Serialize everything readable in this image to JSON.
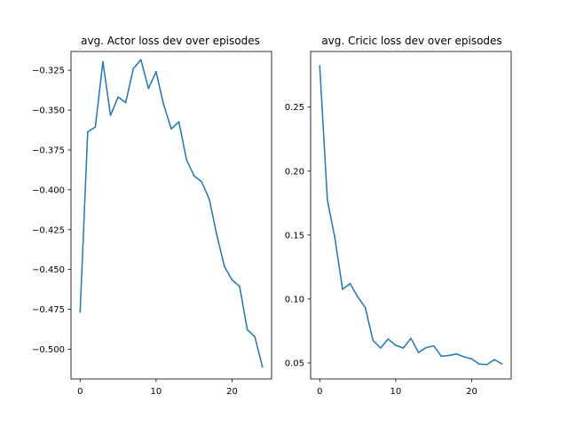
{
  "chart_data": [
    {
      "type": "line",
      "title": "avg. Actor loss dev over episodes",
      "xlabel": "",
      "ylabel": "",
      "xlim": [
        -1.2,
        25.2
      ],
      "ylim": [
        -0.5187,
        -0.3132
      ],
      "xticks": [
        0,
        10,
        20
      ],
      "xtick_labels": [
        "0",
        "10",
        "20"
      ],
      "yticks": [
        -0.5,
        -0.475,
        -0.45,
        -0.425,
        -0.4,
        -0.375,
        -0.35,
        -0.325
      ],
      "ytick_labels": [
        "−0.500",
        "−0.475",
        "−0.450",
        "−0.425",
        "−0.400",
        "−0.375",
        "−0.350",
        "−0.325"
      ],
      "grid": false,
      "series": [
        {
          "color": "#1f77b4",
          "x": [
            0,
            1,
            2,
            3,
            4,
            5,
            6,
            7,
            8,
            9,
            10,
            11,
            12,
            13,
            14,
            15,
            16,
            17,
            18,
            19,
            20,
            21,
            22,
            23,
            24
          ],
          "y": [
            -0.4768,
            -0.3637,
            -0.3606,
            -0.3196,
            -0.3533,
            -0.3418,
            -0.3453,
            -0.324,
            -0.3184,
            -0.3364,
            -0.3259,
            -0.3467,
            -0.3618,
            -0.3573,
            -0.3811,
            -0.3912,
            -0.395,
            -0.4059,
            -0.4285,
            -0.4482,
            -0.4565,
            -0.4607,
            -0.4877,
            -0.4923,
            -0.5113
          ]
        }
      ]
    },
    {
      "type": "line",
      "title": "avg. Cricic loss dev over episodes",
      "xlabel": "",
      "ylabel": "",
      "xlim": [
        -1.2,
        25.2
      ],
      "ylim": [
        0.0375,
        0.2935
      ],
      "xticks": [
        0,
        10,
        20
      ],
      "xtick_labels": [
        "0",
        "10",
        "20"
      ],
      "yticks": [
        0.05,
        0.1,
        0.15,
        0.2,
        0.25
      ],
      "ytick_labels": [
        "0.05",
        "0.10",
        "0.15",
        "0.20",
        "0.25"
      ],
      "grid": false,
      "series": [
        {
          "color": "#1f77b4",
          "x": [
            0,
            1,
            2,
            3,
            4,
            5,
            6,
            7,
            8,
            9,
            10,
            11,
            12,
            13,
            14,
            15,
            16,
            17,
            18,
            19,
            20,
            21,
            22,
            23,
            24
          ],
          "y": [
            0.2823,
            0.1777,
            0.1475,
            0.1077,
            0.1121,
            0.1016,
            0.0932,
            0.0677,
            0.0617,
            0.0687,
            0.0638,
            0.0617,
            0.0692,
            0.0582,
            0.062,
            0.0634,
            0.0553,
            0.0559,
            0.057,
            0.0548,
            0.0532,
            0.0491,
            0.0488,
            0.0526,
            0.0492
          ]
        }
      ]
    }
  ]
}
